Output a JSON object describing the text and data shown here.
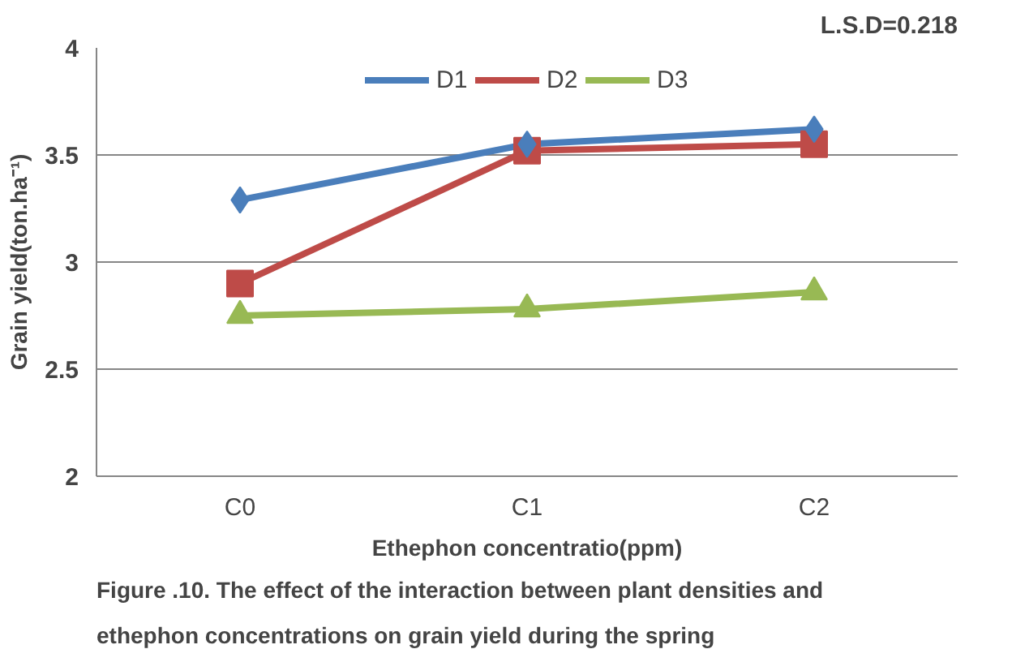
{
  "chart_data": {
    "type": "line",
    "xlabel": "Ethephon concentratio(ppm)",
    "ylabel": "Grain yield(ton.ha⁻¹)",
    "categories": [
      "C0",
      "C1",
      "C2"
    ],
    "series": [
      {
        "name": "D1",
        "color": "#4a7ebb",
        "marker": "diamond",
        "values": [
          3.29,
          3.55,
          3.62
        ]
      },
      {
        "name": "D2",
        "color": "#be4b48",
        "marker": "square",
        "values": [
          2.9,
          3.52,
          3.55
        ]
      },
      {
        "name": "D3",
        "color": "#98b954",
        "marker": "triangle",
        "values": [
          2.75,
          2.78,
          2.86
        ]
      }
    ],
    "ylim": [
      2,
      4
    ],
    "yticks": [
      2,
      2.5,
      3,
      3.5,
      4
    ],
    "grid": "y",
    "legend": "top",
    "annotations": [
      "L.S.D=0.218",
      "Figure .10. The effect of the interaction between plant densities and ethephon concentrations on grain yield during the spring"
    ]
  }
}
